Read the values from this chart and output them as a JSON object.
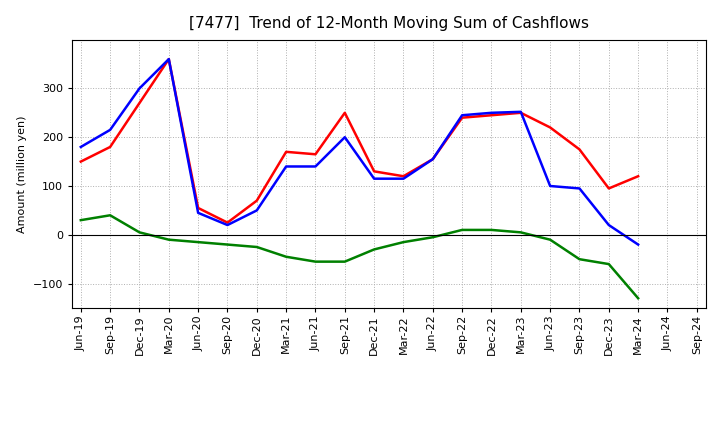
{
  "title": "[7477]  Trend of 12-Month Moving Sum of Cashflows",
  "ylabel": "Amount (million yen)",
  "x_labels": [
    "Jun-19",
    "Sep-19",
    "Dec-19",
    "Mar-20",
    "Jun-20",
    "Sep-20",
    "Dec-20",
    "Mar-21",
    "Jun-21",
    "Sep-21",
    "Dec-21",
    "Mar-22",
    "Jun-22",
    "Sep-22",
    "Dec-22",
    "Mar-23",
    "Jun-23",
    "Sep-23",
    "Dec-23",
    "Mar-24",
    "Jun-24",
    "Sep-24"
  ],
  "operating": [
    150,
    180,
    270,
    360,
    55,
    25,
    70,
    170,
    165,
    250,
    130,
    120,
    155,
    240,
    245,
    250,
    220,
    175,
    95,
    120,
    null,
    null
  ],
  "investing": [
    30,
    40,
    5,
    -10,
    -15,
    -20,
    -25,
    -45,
    -55,
    -55,
    -30,
    -15,
    -5,
    10,
    10,
    5,
    -10,
    -50,
    -60,
    -130,
    null,
    null
  ],
  "free": [
    180,
    215,
    300,
    360,
    45,
    20,
    50,
    140,
    140,
    200,
    115,
    115,
    155,
    245,
    250,
    252,
    100,
    95,
    20,
    -20,
    null,
    null
  ],
  "operating_color": "#ff0000",
  "investing_color": "#008000",
  "free_color": "#0000ff",
  "ylim": [
    -150,
    400
  ],
  "yticks": [
    -100,
    0,
    100,
    200,
    300
  ],
  "background_color": "#ffffff",
  "grid_color": "#b0b0b0",
  "title_fontsize": 11,
  "axis_label_fontsize": 8,
  "tick_fontsize": 8,
  "legend_fontsize": 9,
  "linewidth": 1.8
}
